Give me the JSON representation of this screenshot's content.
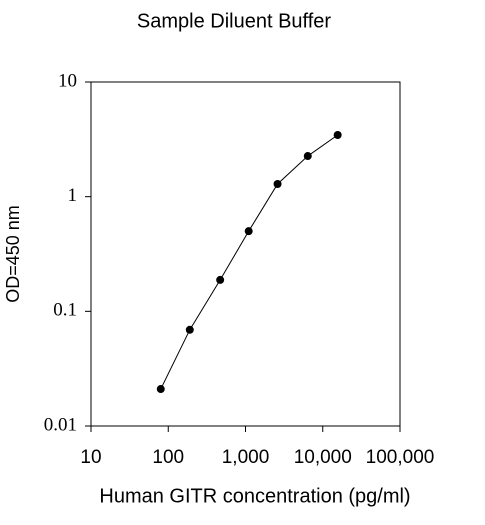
{
  "chart_data": {
    "type": "line",
    "title": "Sample Diluent Buffer",
    "x_label": "Human GITR concentration (pg/ml)",
    "y_label": "OD=450 nm",
    "x_scale": "log",
    "y_scale": "log",
    "color": "#000000",
    "x": [
      80,
      190,
      470,
      1100,
      2600,
      6400,
      15600
    ],
    "series": [
      {
        "name": "OD",
        "color": "#000000",
        "values": [
          0.021,
          0.069,
          0.188,
          0.5,
          1.29,
          2.26,
          3.45
        ]
      }
    ],
    "xlim": [
      10,
      100000
    ],
    "xticks": [
      10,
      100,
      {
        "value": 1000,
        "label": "1,000"
      },
      {
        "value": 10000,
        "label": "10,000"
      },
      {
        "value": 100000,
        "label": "100,000"
      }
    ],
    "ylim": [
      0.01,
      10
    ],
    "yticks": [
      0.01,
      0.1,
      1,
      10
    ]
  }
}
